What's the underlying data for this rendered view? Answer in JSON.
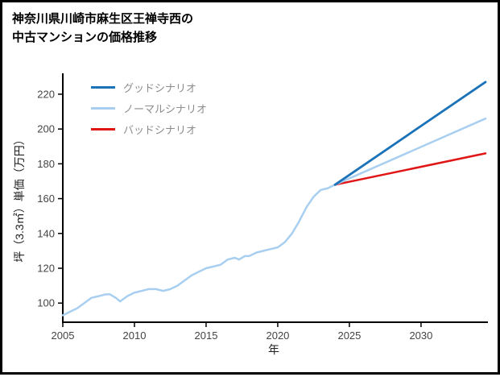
{
  "header": {
    "title_line1": "神奈川県川崎市麻生区王禅寺西の",
    "title_line2": "中古マンションの価格推移"
  },
  "chart_data": {
    "type": "line",
    "title": "神奈川県川崎市麻生区王禅寺西の中古マンションの価格推移",
    "xlabel": "年",
    "ylabel": "坪（3.3㎡）単価（万円）",
    "xlim": [
      2005,
      2034.5
    ],
    "ylim": [
      89,
      232
    ],
    "x_ticks": [
      2005,
      2010,
      2015,
      2020,
      2025,
      2030
    ],
    "y_ticks": [
      100,
      120,
      140,
      160,
      180,
      200,
      220
    ],
    "grid": false,
    "legend_position": "top-left",
    "axis_color": "#000000",
    "tick_color": "#444444",
    "legend": [
      {
        "label": "グッドシナリオ",
        "color": "#1a72b8"
      },
      {
        "label": "ノーマルシナリオ",
        "color": "#a8cff0"
      },
      {
        "label": "バッドシナリオ",
        "color": "#e01616"
      }
    ],
    "series": [
      {
        "name": "実績（ノーマル色）",
        "color": "#a8cff0",
        "width": 2.5,
        "x": [
          2005,
          2005.5,
          2006,
          2006.5,
          2007,
          2007.5,
          2008,
          2008.3,
          2008.7,
          2009,
          2009.5,
          2010,
          2010.5,
          2011,
          2011.5,
          2012,
          2012.5,
          2013,
          2013.5,
          2014,
          2014.5,
          2015,
          2015.5,
          2016,
          2016.5,
          2017,
          2017.3,
          2017.7,
          2018,
          2018.5,
          2019,
          2019.5,
          2020,
          2020.5,
          2021,
          2021.5,
          2022,
          2022.5,
          2023,
          2023.5,
          2024
        ],
        "y": [
          93,
          95,
          97,
          100,
          103,
          104,
          105,
          105,
          103,
          101,
          104,
          106,
          107,
          108,
          108,
          107,
          108,
          110,
          113,
          116,
          118,
          120,
          121,
          122,
          125,
          126,
          125,
          127,
          127,
          129,
          130,
          131,
          132,
          135,
          140,
          147,
          155,
          161,
          165,
          166,
          168
        ],
        "role": "history"
      },
      {
        "name": "バッドシナリオ",
        "color": "#e01616",
        "width": 2.5,
        "x": [
          2024,
          2034.5
        ],
        "y": [
          168,
          186
        ],
        "role": "forecast-bad"
      },
      {
        "name": "ノーマルシナリオ",
        "color": "#a8cff0",
        "width": 2.5,
        "x": [
          2024,
          2034.5
        ],
        "y": [
          168,
          206
        ],
        "role": "forecast-normal"
      },
      {
        "name": "グッドシナリオ",
        "color": "#1a72b8",
        "width": 2.8,
        "x": [
          2024,
          2034.5
        ],
        "y": [
          168,
          227
        ],
        "role": "forecast-good"
      }
    ]
  }
}
